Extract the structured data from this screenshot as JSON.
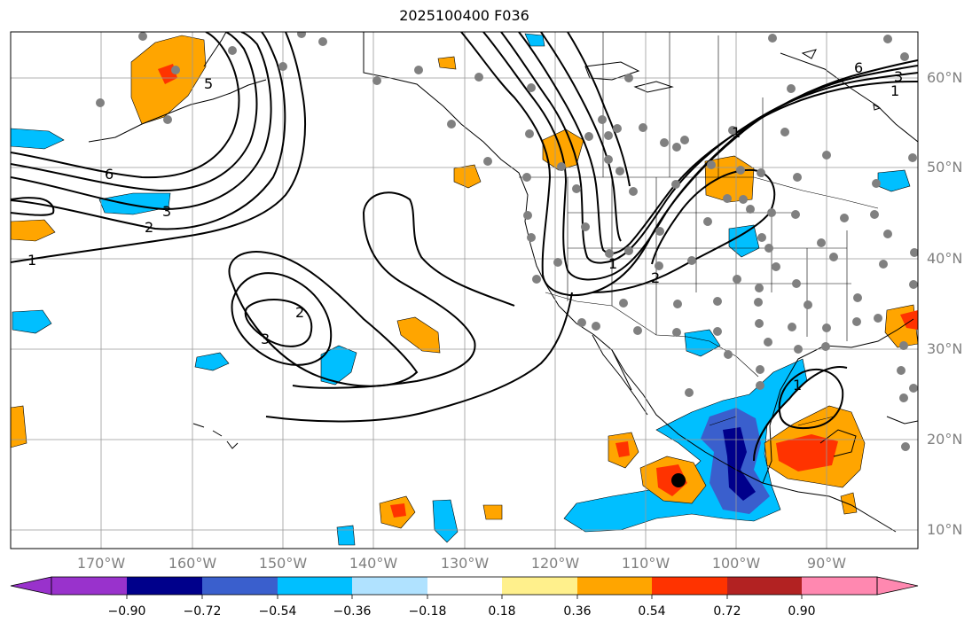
{
  "title": "2025100400 F036",
  "latitude_labels": [
    "60°N",
    "50°N",
    "40°N",
    "30°N",
    "20°N",
    "10°N"
  ],
  "longitude_labels": [
    "170°W",
    "160°W",
    "150°W",
    "140°W",
    "130°W",
    "120°W",
    "110°W",
    "100°W",
    "90°W"
  ],
  "colorbar": {
    "ticks": [
      "−0.90",
      "−0.72",
      "−0.54",
      "−0.36",
      "−0.18",
      "0.18",
      "0.36",
      "0.54",
      "0.72",
      "0.90"
    ],
    "colors": [
      "#9932cc",
      "#00008b",
      "#3a5fcd",
      "#00bfff",
      "#b0e2ff",
      "#ffffff",
      "#fff08c",
      "#ffa500",
      "#ff3300",
      "#b22222",
      "#ff88b0"
    ]
  },
  "contour_labels": [
    "6",
    "3",
    "2",
    "1",
    "5",
    "2",
    "3",
    "1",
    "2",
    "1",
    "6",
    "3",
    "1",
    "1"
  ]
}
